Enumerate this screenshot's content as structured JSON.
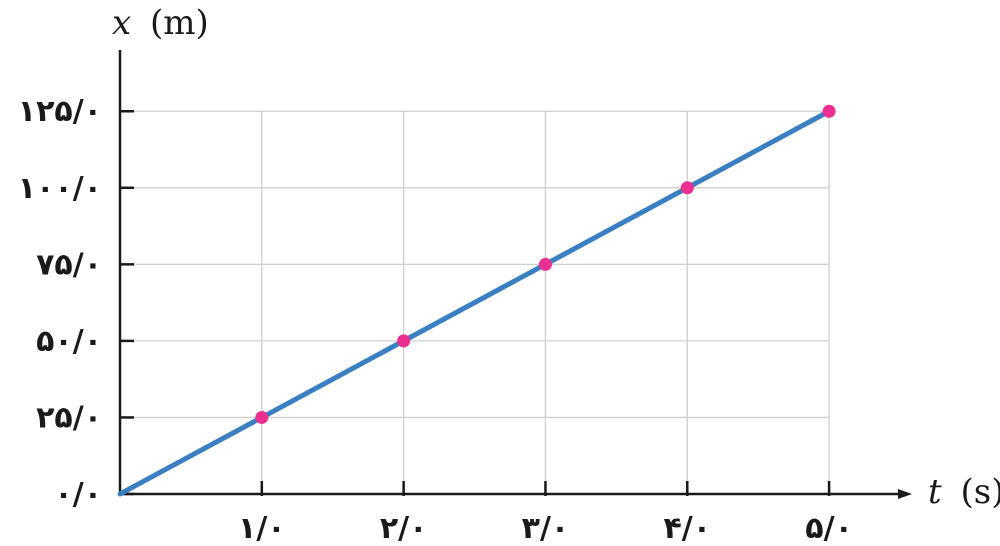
{
  "chart_data": {
    "type": "line",
    "ylabel_var": "x",
    "ylabel_unit": "(m)",
    "xlabel_var": "t",
    "xlabel_unit": "(s)",
    "xlim": [
      0,
      5.5
    ],
    "ylim": [
      0,
      145
    ],
    "grid": true,
    "x_ticks": [
      1,
      2,
      3,
      4,
      5
    ],
    "x_tick_labels": [
      "۱/۰",
      "۲/۰",
      "۳/۰",
      "۴/۰",
      "۵/۰"
    ],
    "y_ticks": [
      0,
      25,
      50,
      75,
      100,
      125
    ],
    "y_tick_labels": [
      "۰/۰",
      "۲۵/۰",
      "۵۰/۰",
      "۷۵/۰",
      "۱۰۰/۰",
      "۱۲۵/۰"
    ],
    "line": {
      "x": [
        0,
        5
      ],
      "y": [
        0,
        125
      ]
    },
    "points": {
      "x": [
        1,
        2,
        3,
        4,
        5
      ],
      "y": [
        25,
        50,
        75,
        100,
        125
      ]
    },
    "colors": {
      "line": "#3a7fc2",
      "points": "#ec2f91",
      "axis": "#1a1a1a",
      "grid": "#cfcfcf"
    }
  }
}
